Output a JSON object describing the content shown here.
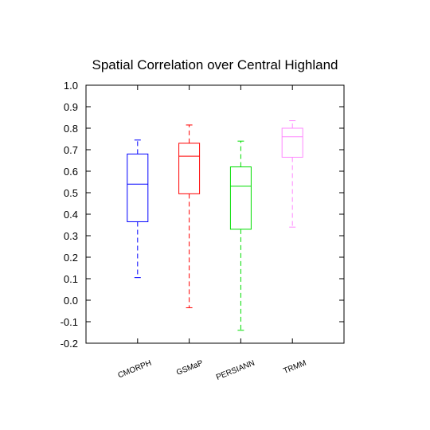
{
  "chart_data": {
    "type": "box",
    "title": "Spatial Correlation over Central Highland",
    "xlabel": "",
    "ylabel": "",
    "ylim": [
      -0.2,
      1.0
    ],
    "yticks": [
      "-0.2",
      "-0.1",
      "0.0",
      "0.1",
      "0.2",
      "0.3",
      "0.4",
      "0.5",
      "0.6",
      "0.7",
      "0.8",
      "0.9",
      "1.0"
    ],
    "grid": false,
    "boxes": [
      {
        "label": "CMORPH",
        "color": "#0000ff",
        "min": 0.105,
        "q1": 0.365,
        "median": 0.54,
        "q3": 0.68,
        "max": 0.745
      },
      {
        "label": "GSMaP",
        "color": "#ff0000",
        "min": -0.035,
        "q1": 0.495,
        "median": 0.67,
        "q3": 0.73,
        "max": 0.815
      },
      {
        "label": "PERSIANN",
        "color": "#00dd00",
        "min": -0.14,
        "q1": 0.33,
        "median": 0.53,
        "q3": 0.62,
        "max": 0.74
      },
      {
        "label": "TRMM",
        "color": "#ff88ff",
        "min": 0.34,
        "q1": 0.665,
        "median": 0.76,
        "q3": 0.8,
        "max": 0.835
      }
    ]
  }
}
